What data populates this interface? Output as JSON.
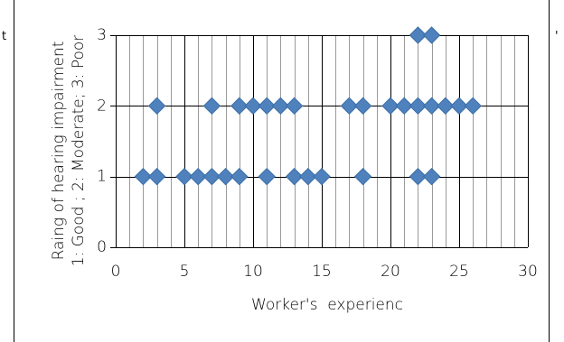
{
  "chart_data": {
    "type": "scatter",
    "title": "",
    "xlabel": "Worker's  experienc",
    "ylabel_lines": [
      "Raing of hearing impairment",
      "1: Good ; 2: Moderate; 3: Poor"
    ],
    "xlim": [
      0,
      30
    ],
    "ylim": [
      0,
      3
    ],
    "x_ticks": [
      "0",
      "5",
      "10",
      "15",
      "20",
      "25",
      "30"
    ],
    "y_ticks": [
      "0",
      "1",
      "2",
      "3"
    ],
    "grid": "on",
    "legend": "none",
    "marker": "diamond",
    "series": [
      {
        "color": "#4f81bd",
        "points": [
          [
            2,
            1
          ],
          [
            3,
            1
          ],
          [
            5,
            1
          ],
          [
            6,
            1
          ],
          [
            7,
            1
          ],
          [
            8,
            1
          ],
          [
            9,
            1
          ],
          [
            11,
            1
          ],
          [
            13,
            1
          ],
          [
            14,
            1
          ],
          [
            15,
            1
          ],
          [
            18,
            1
          ],
          [
            22,
            1
          ],
          [
            23,
            1
          ],
          [
            3,
            2
          ],
          [
            7,
            2
          ],
          [
            9,
            2
          ],
          [
            10,
            2
          ],
          [
            11,
            2
          ],
          [
            12,
            2
          ],
          [
            13,
            2
          ],
          [
            17,
            2
          ],
          [
            18,
            2
          ],
          [
            20,
            2
          ],
          [
            21,
            2
          ],
          [
            22,
            2
          ],
          [
            23,
            2
          ],
          [
            24,
            2
          ],
          [
            25,
            2
          ],
          [
            26,
            2
          ],
          [
            22,
            3
          ],
          [
            23,
            3
          ]
        ]
      }
    ]
  },
  "edge_text": {
    "left": "t",
    "right": "'"
  }
}
